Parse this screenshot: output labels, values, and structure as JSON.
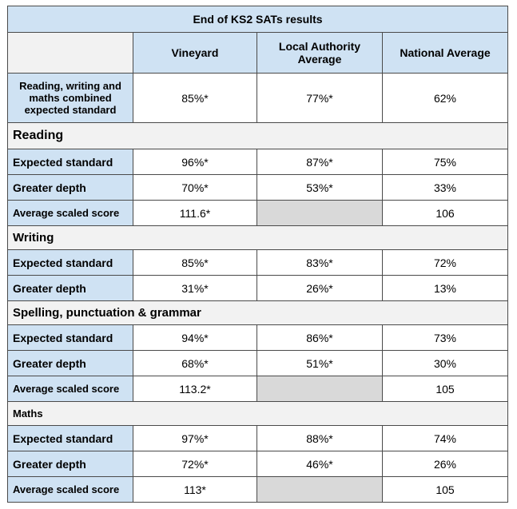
{
  "title": "End of KS2 SATs results",
  "columns": [
    "Vineyard",
    "Local Authority Average",
    "National Average"
  ],
  "combined": {
    "label": "Reading, writing and maths combined expected standard",
    "values": [
      "85%*",
      "77%*",
      "62%"
    ]
  },
  "sections": [
    {
      "name": "Reading",
      "rows": [
        {
          "label": "Expected standard",
          "values": [
            "96%*",
            "87%*",
            "75%"
          ]
        },
        {
          "label": "Greater depth",
          "values": [
            "70%*",
            "53%*",
            "33%"
          ]
        },
        {
          "label": "Average scaled score",
          "values": [
            "111.6*",
            "",
            "106"
          ]
        }
      ]
    },
    {
      "name": "Writing",
      "rows": [
        {
          "label": "Expected standard",
          "values": [
            "85%*",
            "83%*",
            "72%"
          ]
        },
        {
          "label": "Greater depth",
          "values": [
            "31%*",
            "26%*",
            "13%"
          ]
        }
      ]
    },
    {
      "name": "Spelling, punctuation & grammar",
      "rows": [
        {
          "label": "Expected standard",
          "values": [
            "94%*",
            "86%*",
            "73%"
          ]
        },
        {
          "label": "Greater depth",
          "values": [
            "68%*",
            "51%*",
            "30%"
          ]
        },
        {
          "label": "Average scaled score",
          "values": [
            "113.2*",
            "",
            "105"
          ]
        }
      ]
    },
    {
      "name": "Maths",
      "rows": [
        {
          "label": "Expected standard",
          "values": [
            "97%*",
            "88%*",
            "74%"
          ]
        },
        {
          "label": "Greater depth",
          "values": [
            "72%*",
            "46%*",
            "26%"
          ]
        },
        {
          "label": "Average scaled score",
          "values": [
            "113*",
            "",
            "105"
          ]
        }
      ]
    }
  ]
}
